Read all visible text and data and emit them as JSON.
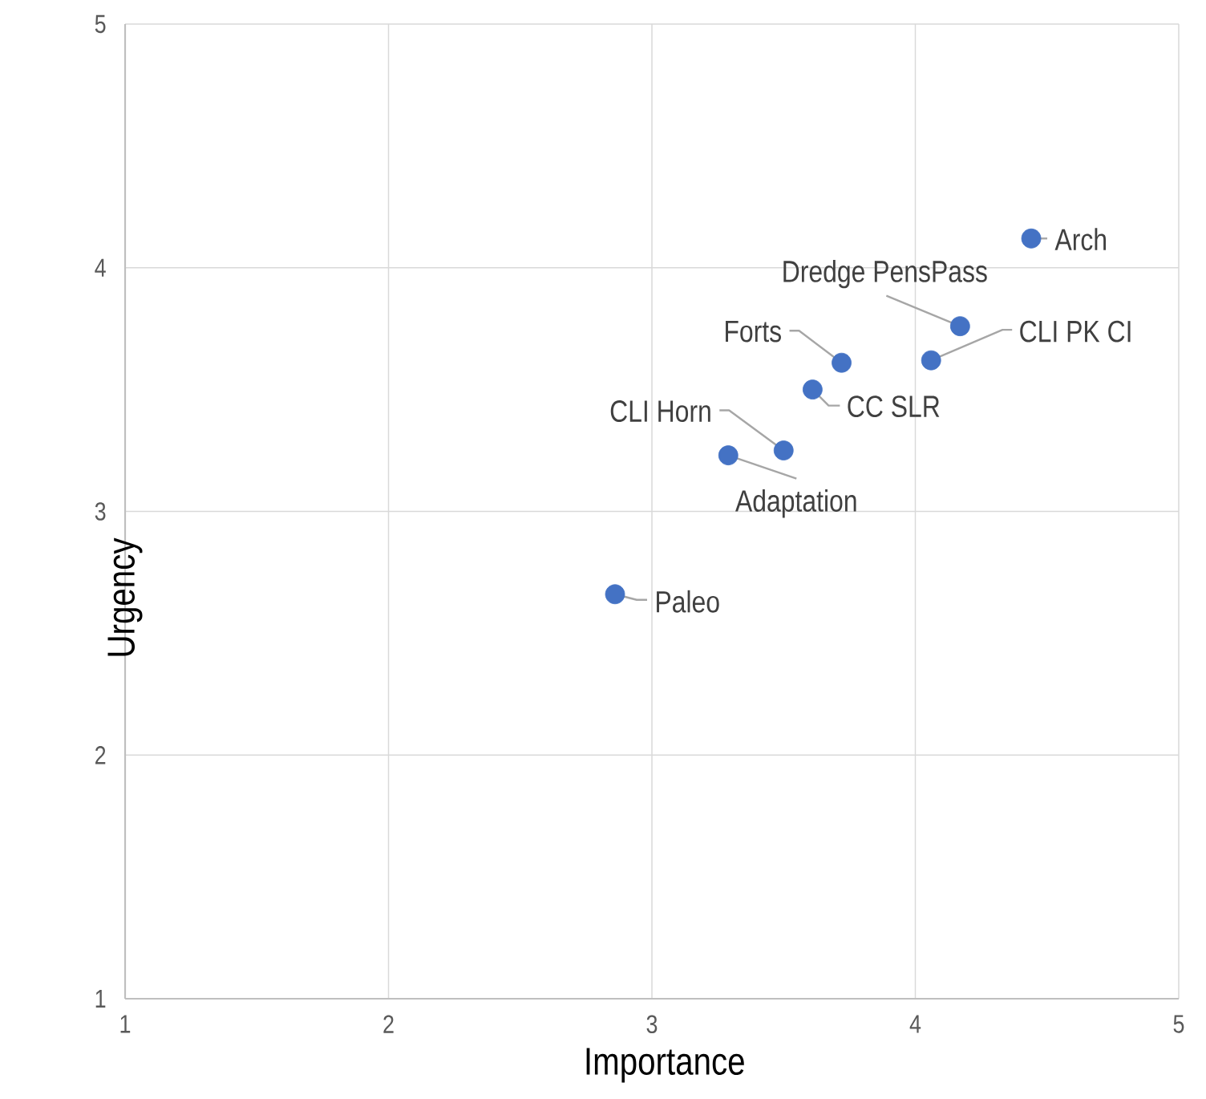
{
  "chart_data": {
    "type": "scatter",
    "xlabel": "Importance",
    "ylabel": "Urgency",
    "xlim": [
      1,
      5
    ],
    "ylim": [
      1,
      5
    ],
    "xticks": [
      1,
      2,
      3,
      4,
      5
    ],
    "yticks": [
      1,
      2,
      3,
      4,
      5
    ],
    "grid": true,
    "marker": "circle",
    "x": [
      4.44,
      4.17,
      4.06,
      3.72,
      3.61,
      3.5,
      3.29,
      2.86
    ],
    "series": [
      {
        "color": "#4472c4",
        "values": [
          4.12,
          3.76,
          3.62,
          3.61,
          3.5,
          3.25,
          3.23,
          2.66
        ]
      }
    ],
    "annotations": [
      {
        "text": "Arch",
        "x": 4.44,
        "y": 4.12
      },
      {
        "text": "Dredge PensPass",
        "x": 4.17,
        "y": 3.76
      },
      {
        "text": "CLI PK CI",
        "x": 4.06,
        "y": 3.62
      },
      {
        "text": "Forts",
        "x": 3.72,
        "y": 3.61
      },
      {
        "text": "CC SLR",
        "x": 3.61,
        "y": 3.5
      },
      {
        "text": "CLI Horn",
        "x": 3.5,
        "y": 3.25
      },
      {
        "text": "Adaptation",
        "x": 3.29,
        "y": 3.23
      },
      {
        "text": "Paleo",
        "x": 2.86,
        "y": 2.66
      }
    ]
  }
}
